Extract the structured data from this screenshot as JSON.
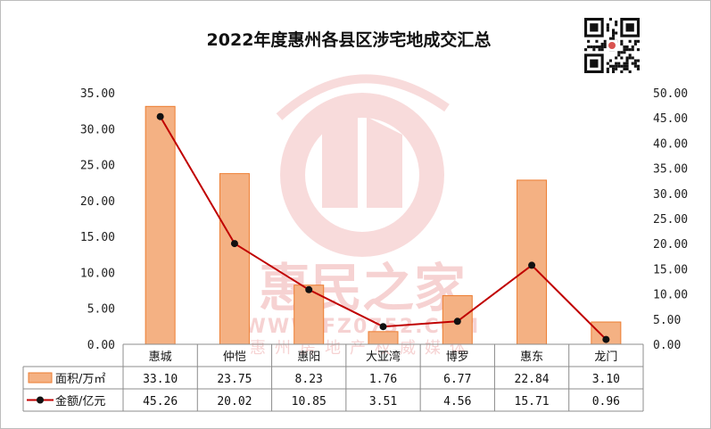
{
  "chart_data": {
    "type": "bar+line",
    "title": "2022年度惠州各县区涉宅地成交汇总",
    "categories": [
      "惠城",
      "仲恺",
      "惠阳",
      "大亚湾",
      "博罗",
      "惠东",
      "龙门"
    ],
    "series": [
      {
        "name": "面积/万㎡",
        "type": "bar",
        "axis": "left",
        "values": [
          33.1,
          23.75,
          8.23,
          1.76,
          6.77,
          22.84,
          3.1
        ],
        "value_labels": [
          "33.10",
          "23.75",
          "8.23",
          "1.76",
          "6.77",
          "22.84",
          "3.10"
        ],
        "color": "#f4b183"
      },
      {
        "name": "金额/亿元",
        "type": "line",
        "axis": "right",
        "values": [
          45.26,
          20.02,
          10.85,
          3.51,
          4.56,
          15.71,
          0.96
        ],
        "value_labels": [
          "45.26",
          "20.02",
          "10.85",
          "3.51",
          "4.56",
          "15.71",
          "0.96"
        ],
        "color": "#c00000"
      }
    ],
    "y_left": {
      "lim": [
        0,
        35
      ],
      "ticks": [
        "0.00",
        "5.00",
        "10.00",
        "15.00",
        "20.00",
        "25.00",
        "30.00",
        "35.00"
      ]
    },
    "y_right": {
      "lim": [
        0,
        50
      ],
      "ticks": [
        "0.00",
        "5.00",
        "10.00",
        "15.00",
        "20.00",
        "25.00",
        "30.00",
        "35.00",
        "40.00",
        "45.00",
        "50.00"
      ]
    },
    "grid": false,
    "legend": "data-table-below"
  },
  "watermark": {
    "brand": "惠民之家",
    "url": "WWW.FZ0752.COM",
    "tagline": "惠州房地产权威媒体"
  },
  "qr_code": {
    "icon": "qr-code-icon"
  }
}
